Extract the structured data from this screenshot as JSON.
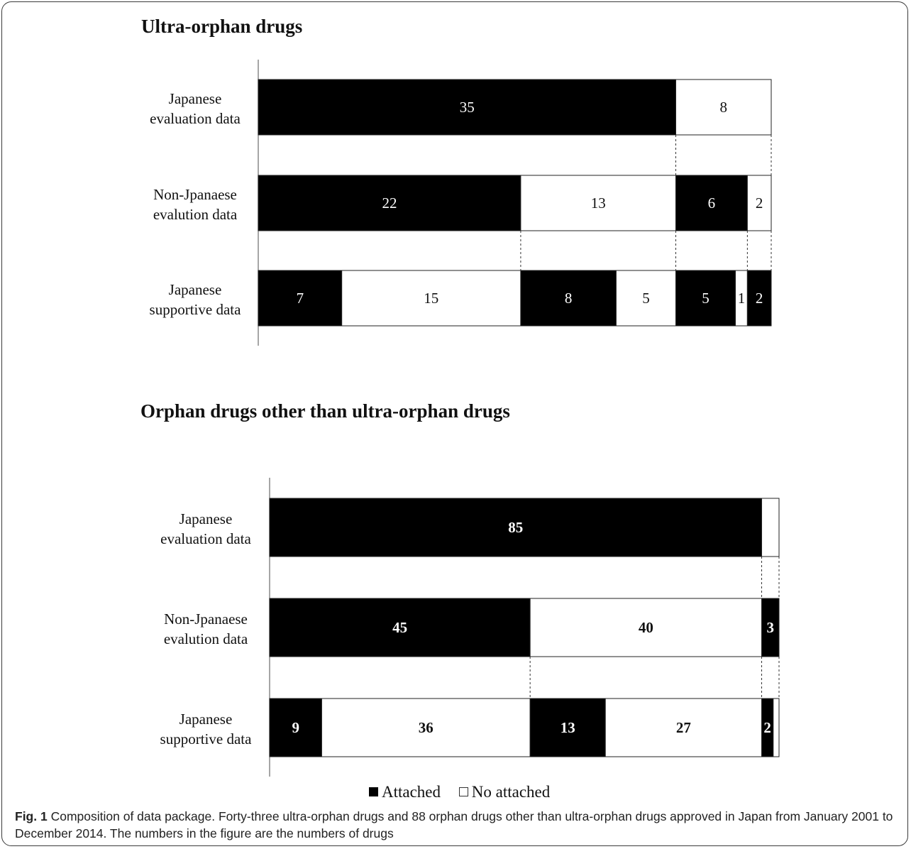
{
  "chart_data": [
    {
      "type": "bar",
      "title": "Ultra-orphan drugs",
      "total": 43,
      "rows": [
        {
          "label": [
            "Japanese",
            "evaluation data"
          ],
          "segments": [
            {
              "value": 35,
              "fill": "black",
              "label": "35"
            },
            {
              "value": 8,
              "fill": "white",
              "label": "8"
            }
          ]
        },
        {
          "label": [
            "Non-Jpanaese",
            "evalution data"
          ],
          "segments": [
            {
              "value": 22,
              "fill": "black",
              "label": "22"
            },
            {
              "value": 13,
              "fill": "white",
              "label": "13"
            },
            {
              "value": 6,
              "fill": "black",
              "label": "6"
            },
            {
              "value": 2,
              "fill": "white",
              "label": "2"
            }
          ]
        },
        {
          "label": [
            "Japanese",
            "supportive data"
          ],
          "segments": [
            {
              "value": 7,
              "fill": "black",
              "label": "7"
            },
            {
              "value": 15,
              "fill": "white",
              "label": "15"
            },
            {
              "value": 8,
              "fill": "black",
              "label": "8"
            },
            {
              "value": 5,
              "fill": "white",
              "label": "5"
            },
            {
              "value": 5,
              "fill": "black",
              "label": "5"
            },
            {
              "value": 1,
              "fill": "white",
              "label": "1"
            },
            {
              "value": 2,
              "fill": "black",
              "label": "2"
            }
          ]
        }
      ],
      "connectors": [
        [
          0,
          1,
          [
            35,
            43
          ]
        ],
        [
          1,
          2,
          [
            22,
            35,
            41,
            43
          ]
        ]
      ]
    },
    {
      "type": "bar",
      "title": "Orphan drugs other than ultra-orphan drugs",
      "total": 88,
      "rows": [
        {
          "label": [
            "Japanese",
            "evaluation data"
          ],
          "segments": [
            {
              "value": 85,
              "fill": "black",
              "label": "85"
            },
            {
              "value": 3,
              "fill": "white",
              "label": ""
            }
          ]
        },
        {
          "label": [
            "Non-Jpanaese",
            "evalution data"
          ],
          "segments": [
            {
              "value": 45,
              "fill": "black",
              "label": "45"
            },
            {
              "value": 40,
              "fill": "white",
              "label": "40"
            },
            {
              "value": 3,
              "fill": "black",
              "label": "3"
            }
          ]
        },
        {
          "label": [
            "Japanese",
            "supportive data"
          ],
          "segments": [
            {
              "value": 9,
              "fill": "black",
              "label": "9"
            },
            {
              "value": 36,
              "fill": "white",
              "label": "36"
            },
            {
              "value": 13,
              "fill": "black",
              "label": "13"
            },
            {
              "value": 27,
              "fill": "white",
              "label": "27"
            },
            {
              "value": 2,
              "fill": "black",
              "label": "2"
            },
            {
              "value": 1,
              "fill": "white",
              "label": ""
            }
          ]
        }
      ],
      "connectors": [
        [
          0,
          1,
          [
            85,
            88
          ]
        ],
        [
          1,
          2,
          [
            45,
            85,
            88
          ]
        ]
      ]
    }
  ],
  "legend": {
    "attached": "Attached",
    "no_attached": "No attached"
  },
  "caption": {
    "fig_label": "Fig. 1",
    "text": "Composition of data package. Forty-three ultra-orphan drugs and 88 orphan drugs other than ultra-orphan drugs approved in Japan from January 2001 to December 2014. The numbers in the figure are the numbers of drugs"
  }
}
